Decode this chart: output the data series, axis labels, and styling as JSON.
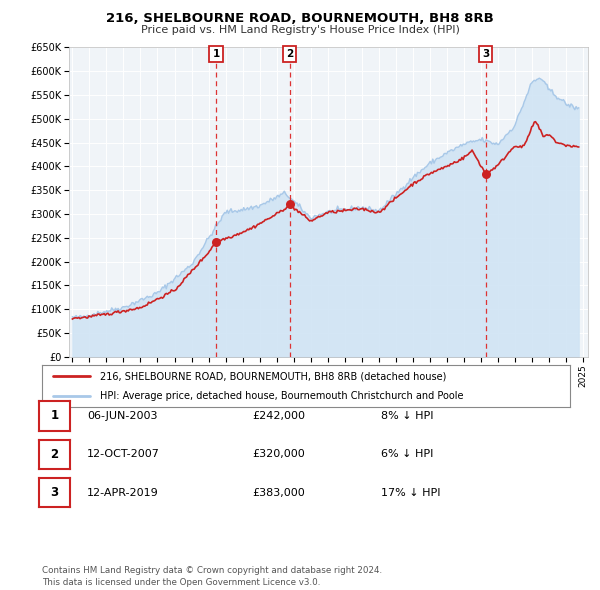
{
  "title": "216, SHELBOURNE ROAD, BOURNEMOUTH, BH8 8RB",
  "subtitle": "Price paid vs. HM Land Registry's House Price Index (HPI)",
  "ylim": [
    0,
    650000
  ],
  "yticks": [
    0,
    50000,
    100000,
    150000,
    200000,
    250000,
    300000,
    350000,
    400000,
    450000,
    500000,
    550000,
    600000,
    650000
  ],
  "ytick_labels": [
    "£0",
    "£50K",
    "£100K",
    "£150K",
    "£200K",
    "£250K",
    "£300K",
    "£350K",
    "£400K",
    "£450K",
    "£500K",
    "£550K",
    "£600K",
    "£650K"
  ],
  "xticks": [
    1995,
    1996,
    1997,
    1998,
    1999,
    2000,
    2001,
    2002,
    2003,
    2004,
    2005,
    2006,
    2007,
    2008,
    2009,
    2010,
    2011,
    2012,
    2013,
    2014,
    2015,
    2016,
    2017,
    2018,
    2019,
    2020,
    2021,
    2022,
    2023,
    2024,
    2025
  ],
  "hpi_color": "#a8c8e8",
  "hpi_fill_color": "#d0e4f4",
  "price_color": "#cc2222",
  "marker_color": "#cc2222",
  "sale_dates": [
    2003.44,
    2007.78,
    2019.28
  ],
  "sale_prices": [
    242000,
    320000,
    383000
  ],
  "sale_labels": [
    "1",
    "2",
    "3"
  ],
  "vline_color": "#dd3333",
  "annotation_box_edge": "#cc2222",
  "legend_line1": "216, SHELBOURNE ROAD, BOURNEMOUTH, BH8 8RB (detached house)",
  "legend_line2": "HPI: Average price, detached house, Bournemouth Christchurch and Poole",
  "table_rows": [
    [
      "1",
      "06-JUN-2003",
      "£242,000",
      "8% ↓ HPI"
    ],
    [
      "2",
      "12-OCT-2007",
      "£320,000",
      "6% ↓ HPI"
    ],
    [
      "3",
      "12-APR-2019",
      "£383,000",
      "17% ↓ HPI"
    ]
  ],
  "footer": "Contains HM Land Registry data © Crown copyright and database right 2024.\nThis data is licensed under the Open Government Licence v3.0.",
  "background_color": "#ffffff",
  "plot_bg_color": "#f0f4f8",
  "grid_color": "#ffffff"
}
